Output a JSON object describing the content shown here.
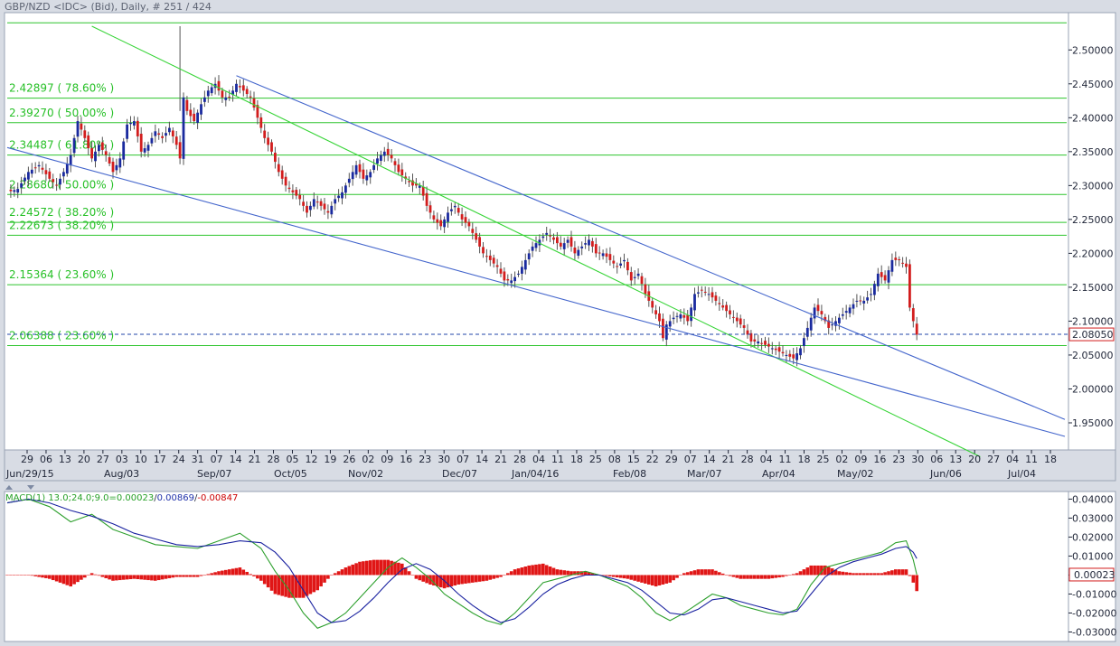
{
  "title": "GBP/NZD <IDC> (Bid), Daily, # 251 / 424",
  "chart_data": [
    {
      "type": "candlestick",
      "instrument": "GBP/NZD <IDC> (Bid), Daily",
      "ylim": [
        1.91,
        2.555
      ],
      "y_ticks": [
        "2.50000",
        "2.45000",
        "2.40000",
        "2.35000",
        "2.30000",
        "2.25000",
        "2.20000",
        "2.15000",
        "2.10000",
        "2.05000",
        "2.00000",
        "1.95000"
      ],
      "x_day_labels": [
        "29",
        "06",
        "13",
        "20",
        "27",
        "03",
        "10",
        "17",
        "24",
        "31",
        "07",
        "14",
        "21",
        "28",
        "05",
        "12",
        "19",
        "26",
        "02",
        "09",
        "16",
        "23",
        "30",
        "07",
        "14",
        "21",
        "28",
        "04",
        "11",
        "18",
        "25",
        "08",
        "15",
        "22",
        "29",
        "07",
        "14",
        "21",
        "28",
        "04",
        "11",
        "18",
        "25",
        "02",
        "09",
        "16",
        "23",
        "30",
        "06",
        "13",
        "20",
        "27",
        "04",
        "11",
        "18"
      ],
      "x_month_labels": [
        "Jun/29/15",
        "Aug/03",
        "Sep/07",
        "Oct/05",
        "Nov/02",
        "Dec/07",
        "Jan/04/16",
        "Feb/08",
        "Mar/07",
        "Apr/04",
        "May/02",
        "Jun/06",
        "Jul/04"
      ],
      "last_price": "2.08050",
      "last_price_value": 2.0805,
      "fib_levels": [
        {
          "price": 2.54,
          "label": ""
        },
        {
          "price": 2.42897,
          "label": "2.42897 ( 78.60% )"
        },
        {
          "price": 2.3927,
          "label": "2.39270 ( 50.00% )"
        },
        {
          "price": 2.34487,
          "label": "2.34487 ( 61.80% )"
        },
        {
          "price": 2.2868,
          "label": "2.28680 ( 50.00% )"
        },
        {
          "price": 2.24572,
          "label": "2.24572 ( 38.20% )"
        },
        {
          "price": 2.22673,
          "label": "2.22673 ( 38.20% )"
        },
        {
          "price": 2.15364,
          "label": "2.15364 ( 23.60% )"
        },
        {
          "price": 2.06388,
          "label": "2.06388 ( 23.60% )"
        }
      ],
      "trendlines": [
        {
          "color": "#36d436",
          "from": [
            24,
            2.535
          ],
          "to": [
            276,
            1.9
          ]
        },
        {
          "color": "#4466cc",
          "from": [
            0,
            2.356
          ],
          "to": [
            300,
            1.93
          ]
        },
        {
          "color": "#4466cc",
          "from": [
            65,
            2.462
          ],
          "to": [
            300,
            1.955
          ]
        }
      ],
      "close_points": [
        [
          0,
          2.29
        ],
        [
          3,
          2.295
        ],
        [
          6,
          2.32
        ],
        [
          9,
          2.33
        ],
        [
          12,
          2.31
        ],
        [
          14,
          2.3
        ],
        [
          16,
          2.32
        ],
        [
          18,
          2.345
        ],
        [
          20,
          2.395
        ],
        [
          22,
          2.37
        ],
        [
          24,
          2.34
        ],
        [
          26,
          2.36
        ],
        [
          28,
          2.345
        ],
        [
          30,
          2.32
        ],
        [
          32,
          2.34
        ],
        [
          34,
          2.39
        ],
        [
          36,
          2.395
        ],
        [
          38,
          2.35
        ],
        [
          40,
          2.36
        ],
        [
          42,
          2.38
        ],
        [
          44,
          2.37
        ],
        [
          46,
          2.385
        ],
        [
          48,
          2.36
        ],
        [
          49,
          2.34
        ],
        [
          50,
          2.43
        ],
        [
          51,
          2.41
        ],
        [
          53,
          2.395
        ],
        [
          55,
          2.42
        ],
        [
          57,
          2.44
        ],
        [
          59,
          2.45
        ],
        [
          61,
          2.43
        ],
        [
          63,
          2.43
        ],
        [
          65,
          2.45
        ],
        [
          67,
          2.44
        ],
        [
          69,
          2.43
        ],
        [
          71,
          2.4
        ],
        [
          73,
          2.37
        ],
        [
          75,
          2.35
        ],
        [
          77,
          2.32
        ],
        [
          79,
          2.3
        ],
        [
          81,
          2.29
        ],
        [
          83,
          2.28
        ],
        [
          85,
          2.26
        ],
        [
          87,
          2.28
        ],
        [
          89,
          2.27
        ],
        [
          91,
          2.26
        ],
        [
          93,
          2.28
        ],
        [
          95,
          2.29
        ],
        [
          97,
          2.31
        ],
        [
          99,
          2.33
        ],
        [
          101,
          2.31
        ],
        [
          103,
          2.32
        ],
        [
          105,
          2.34
        ],
        [
          107,
          2.35
        ],
        [
          109,
          2.34
        ],
        [
          111,
          2.32
        ],
        [
          113,
          2.31
        ],
        [
          115,
          2.3
        ],
        [
          117,
          2.3
        ],
        [
          119,
          2.27
        ],
        [
          121,
          2.25
        ],
        [
          123,
          2.24
        ],
        [
          125,
          2.26
        ],
        [
          127,
          2.27
        ],
        [
          129,
          2.25
        ],
        [
          131,
          2.24
        ],
        [
          133,
          2.22
        ],
        [
          135,
          2.2
        ],
        [
          137,
          2.19
        ],
        [
          139,
          2.18
        ],
        [
          141,
          2.16
        ],
        [
          143,
          2.16
        ],
        [
          145,
          2.17
        ],
        [
          147,
          2.19
        ],
        [
          149,
          2.21
        ],
        [
          151,
          2.22
        ],
        [
          153,
          2.23
        ],
        [
          155,
          2.22
        ],
        [
          157,
          2.21
        ],
        [
          159,
          2.22
        ],
        [
          161,
          2.2
        ],
        [
          163,
          2.21
        ],
        [
          165,
          2.22
        ],
        [
          167,
          2.2
        ],
        [
          169,
          2.2
        ],
        [
          171,
          2.19
        ],
        [
          173,
          2.18
        ],
        [
          175,
          2.19
        ],
        [
          177,
          2.16
        ],
        [
          179,
          2.17
        ],
        [
          181,
          2.14
        ],
        [
          183,
          2.12
        ],
        [
          185,
          2.1
        ],
        [
          186,
          2.075
        ],
        [
          187,
          2.095
        ],
        [
          189,
          2.105
        ],
        [
          191,
          2.11
        ],
        [
          193,
          2.1
        ],
        [
          195,
          2.14
        ],
        [
          197,
          2.145
        ],
        [
          199,
          2.14
        ],
        [
          201,
          2.13
        ],
        [
          203,
          2.12
        ],
        [
          205,
          2.11
        ],
        [
          207,
          2.1
        ],
        [
          209,
          2.09
        ],
        [
          211,
          2.07
        ],
        [
          213,
          2.07
        ],
        [
          215,
          2.065
        ],
        [
          217,
          2.06
        ],
        [
          219,
          2.055
        ],
        [
          221,
          2.05
        ],
        [
          223,
          2.045
        ],
        [
          225,
          2.06
        ],
        [
          227,
          2.09
        ],
        [
          229,
          2.12
        ],
        [
          231,
          2.11
        ],
        [
          233,
          2.09
        ],
        [
          235,
          2.1
        ],
        [
          237,
          2.11
        ],
        [
          239,
          2.12
        ],
        [
          241,
          2.13
        ],
        [
          243,
          2.13
        ],
        [
          245,
          2.14
        ],
        [
          247,
          2.17
        ],
        [
          249,
          2.16
        ],
        [
          251,
          2.19
        ],
        [
          253,
          2.19
        ],
        [
          255,
          2.18
        ],
        [
          256,
          2.12
        ],
        [
          257,
          2.1
        ],
        [
          258,
          2.08
        ]
      ]
    },
    {
      "type": "line+histogram",
      "label": "MACD(1) 13.0;24.0;9.0=0.00023/0.00869/-0.00847",
      "label_parts": {
        "prefix": "MACD(1) 13.0;24.0;9.0=",
        "macd": "0.00023",
        "sep": "/",
        "signal": "0.00869",
        "hist": "-0.00847"
      },
      "ylim": [
        -0.035,
        0.044
      ],
      "y_ticks": [
        "0.04000",
        "0.03000",
        "0.02000",
        "0.01000",
        "0.00000",
        "-0.01000",
        "-0.02000",
        "-0.03000"
      ],
      "last_value": "0.00023",
      "last_value_num": 0.00023,
      "macd_line": [
        [
          0,
          0.038
        ],
        [
          6,
          0.04
        ],
        [
          12,
          0.036
        ],
        [
          18,
          0.028
        ],
        [
          24,
          0.032
        ],
        [
          30,
          0.024
        ],
        [
          36,
          0.02
        ],
        [
          42,
          0.016
        ],
        [
          48,
          0.015
        ],
        [
          54,
          0.014
        ],
        [
          60,
          0.018
        ],
        [
          66,
          0.022
        ],
        [
          72,
          0.014
        ],
        [
          76,
          0.002
        ],
        [
          80,
          -0.008
        ],
        [
          84,
          -0.02
        ],
        [
          88,
          -0.028
        ],
        [
          92,
          -0.025
        ],
        [
          96,
          -0.02
        ],
        [
          100,
          -0.012
        ],
        [
          104,
          -0.004
        ],
        [
          108,
          0.004
        ],
        [
          112,
          0.009
        ],
        [
          116,
          0.004
        ],
        [
          120,
          -0.002
        ],
        [
          124,
          -0.01
        ],
        [
          128,
          -0.015
        ],
        [
          132,
          -0.02
        ],
        [
          136,
          -0.024
        ],
        [
          140,
          -0.026
        ],
        [
          144,
          -0.02
        ],
        [
          148,
          -0.012
        ],
        [
          152,
          -0.004
        ],
        [
          156,
          -0.002
        ],
        [
          160,
          0.0
        ],
        [
          164,
          0.002
        ],
        [
          168,
          0.0
        ],
        [
          172,
          -0.003
        ],
        [
          176,
          -0.006
        ],
        [
          180,
          -0.012
        ],
        [
          184,
          -0.02
        ],
        [
          188,
          -0.024
        ],
        [
          192,
          -0.02
        ],
        [
          196,
          -0.015
        ],
        [
          200,
          -0.01
        ],
        [
          204,
          -0.012
        ],
        [
          208,
          -0.016
        ],
        [
          212,
          -0.018
        ],
        [
          216,
          -0.02
        ],
        [
          220,
          -0.021
        ],
        [
          224,
          -0.018
        ],
        [
          228,
          -0.005
        ],
        [
          232,
          0.004
        ],
        [
          236,
          0.006
        ],
        [
          240,
          0.008
        ],
        [
          244,
          0.01
        ],
        [
          248,
          0.012
        ],
        [
          252,
          0.017
        ],
        [
          255,
          0.018
        ],
        [
          257,
          0.008
        ],
        [
          258,
          0.00023
        ]
      ],
      "signal_line": [
        [
          0,
          0.038
        ],
        [
          6,
          0.04
        ],
        [
          12,
          0.038
        ],
        [
          18,
          0.034
        ],
        [
          24,
          0.031
        ],
        [
          30,
          0.027
        ],
        [
          36,
          0.022
        ],
        [
          42,
          0.019
        ],
        [
          48,
          0.016
        ],
        [
          54,
          0.015
        ],
        [
          60,
          0.016
        ],
        [
          66,
          0.018
        ],
        [
          72,
          0.017
        ],
        [
          76,
          0.012
        ],
        [
          80,
          0.004
        ],
        [
          84,
          -0.008
        ],
        [
          88,
          -0.02
        ],
        [
          92,
          -0.025
        ],
        [
          96,
          -0.024
        ],
        [
          100,
          -0.019
        ],
        [
          104,
          -0.012
        ],
        [
          108,
          -0.004
        ],
        [
          112,
          0.003
        ],
        [
          116,
          0.006
        ],
        [
          120,
          0.003
        ],
        [
          124,
          -0.003
        ],
        [
          128,
          -0.01
        ],
        [
          132,
          -0.016
        ],
        [
          136,
          -0.021
        ],
        [
          140,
          -0.025
        ],
        [
          144,
          -0.023
        ],
        [
          148,
          -0.017
        ],
        [
          152,
          -0.01
        ],
        [
          156,
          -0.005
        ],
        [
          160,
          -0.002
        ],
        [
          164,
          0.0
        ],
        [
          168,
          0.0
        ],
        [
          172,
          -0.002
        ],
        [
          176,
          -0.004
        ],
        [
          180,
          -0.008
        ],
        [
          184,
          -0.014
        ],
        [
          188,
          -0.02
        ],
        [
          192,
          -0.021
        ],
        [
          196,
          -0.018
        ],
        [
          200,
          -0.013
        ],
        [
          204,
          -0.012
        ],
        [
          208,
          -0.014
        ],
        [
          212,
          -0.016
        ],
        [
          216,
          -0.018
        ],
        [
          220,
          -0.02
        ],
        [
          224,
          -0.019
        ],
        [
          228,
          -0.01
        ],
        [
          232,
          -0.001
        ],
        [
          236,
          0.004
        ],
        [
          240,
          0.007
        ],
        [
          244,
          0.009
        ],
        [
          248,
          0.011
        ],
        [
          252,
          0.014
        ],
        [
          255,
          0.015
        ],
        [
          257,
          0.012
        ],
        [
          258,
          0.00869
        ]
      ]
    }
  ]
}
